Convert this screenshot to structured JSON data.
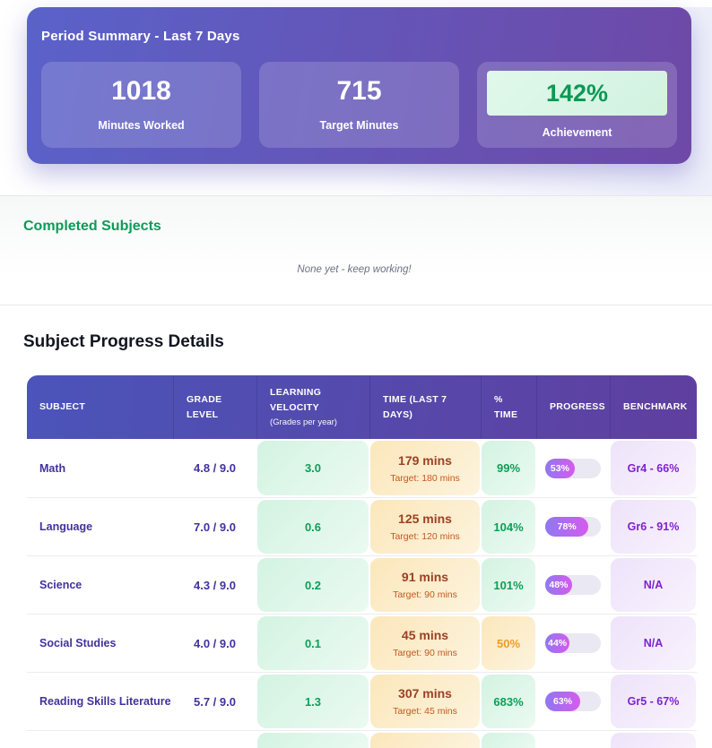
{
  "summary": {
    "title": "Period Summary - Last 7 Days",
    "stats": [
      {
        "value": "1018",
        "label": "Minutes Worked"
      },
      {
        "value": "715",
        "label": "Target Minutes"
      },
      {
        "value": "142%",
        "label": "Achievement"
      }
    ]
  },
  "completed": {
    "heading": "Completed Subjects",
    "empty_message": "None yet - keep working!"
  },
  "table": {
    "heading": "Subject Progress Details",
    "columns": {
      "subject": "SUBJECT",
      "grade_level": "GRADE LEVEL",
      "velocity": "LEARNING VELOCITY",
      "velocity_sub": "(Grades per year)",
      "time": "TIME (LAST 7 DAYS)",
      "pct_time": "% TIME",
      "progress": "PROGRESS",
      "benchmark": "BENCHMARK"
    },
    "rows": [
      {
        "subject": "Math",
        "grade_level": "4.8 / 9.0",
        "velocity": "3.0",
        "time": "179 mins",
        "time_target": "Target: 180 mins",
        "pct_time": "99%",
        "pct_time_low": false,
        "progress_label": "53%",
        "progress_value": 53,
        "benchmark": "Gr4 - 66%"
      },
      {
        "subject": "Language",
        "grade_level": "7.0 / 9.0",
        "velocity": "0.6",
        "time": "125 mins",
        "time_target": "Target: 120 mins",
        "pct_time": "104%",
        "pct_time_low": false,
        "progress_label": "78%",
        "progress_value": 78,
        "benchmark": "Gr6 - 91%"
      },
      {
        "subject": "Science",
        "grade_level": "4.3 / 9.0",
        "velocity": "0.2",
        "time": "91 mins",
        "time_target": "Target: 90 mins",
        "pct_time": "101%",
        "pct_time_low": false,
        "progress_label": "48%",
        "progress_value": 48,
        "benchmark": "N/A"
      },
      {
        "subject": "Social Studies",
        "grade_level": "4.0 / 9.0",
        "velocity": "0.1",
        "time": "45 mins",
        "time_target": "Target: 90 mins",
        "pct_time": "50%",
        "pct_time_low": true,
        "progress_label": "44%",
        "progress_value": 44,
        "benchmark": "N/A"
      },
      {
        "subject": "Reading Skills Literature",
        "grade_level": "5.7 / 9.0",
        "velocity": "1.3",
        "time": "307 mins",
        "time_target": "Target: 45 mins",
        "pct_time": "683%",
        "pct_time_low": false,
        "progress_label": "63%",
        "progress_value": 63,
        "benchmark": "Gr5 - 67%"
      }
    ]
  },
  "colors": {
    "summary_gradient_start": "#5a62c9",
    "summary_gradient_end": "#6e49a7",
    "achievement_green": "#0d9855",
    "section_heading_green": "#0a9b58",
    "header_gradient_start": "#4b54ba",
    "header_gradient_end": "#5f3f9f",
    "subject_text_purple": "#43319f",
    "benchmark_text_purple": "#7e22ce",
    "value_green": "#0f9d58",
    "mins_brown": "#9c4125",
    "target_orange": "#c2591f",
    "warn_orange": "#f09b28",
    "mint_cell": "#d3f3e1",
    "cream_cell": "#fbe7bb",
    "lavender_cell": "#eee3fa",
    "progress_track": "#eae8f2",
    "progress_gradient_start": "#8f78f2",
    "progress_gradient_end": "#d55bee"
  }
}
